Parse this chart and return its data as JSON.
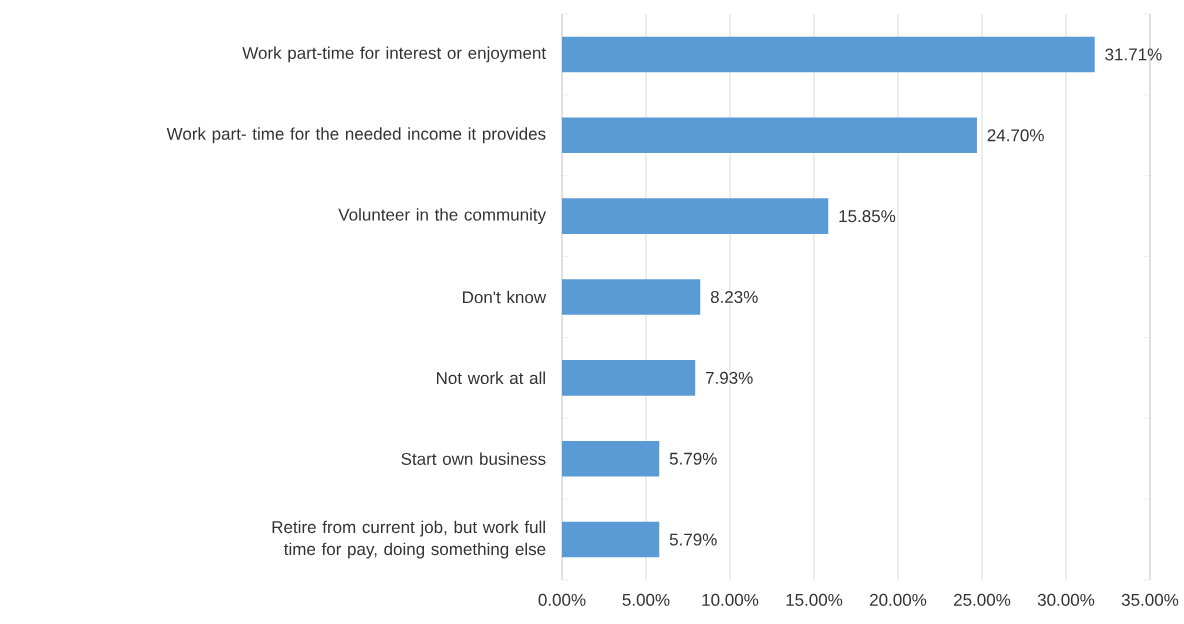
{
  "chart_data": {
    "type": "bar",
    "orientation": "horizontal",
    "categories": [
      "Work part-time for interest or enjoyment",
      "Work part- time for the needed income it provides",
      "Volunteer in the community",
      "Don't know",
      "Not work at all",
      "Start own business",
      "Retire from current job, but work full time for pay, doing something else"
    ],
    "values": [
      31.71,
      24.7,
      15.85,
      8.23,
      7.93,
      5.79,
      5.79
    ],
    "value_labels": [
      "31.71%",
      "24.70%",
      "15.85%",
      "8.23%",
      "7.93%",
      "5.79%",
      "5.79%"
    ],
    "color": "#5b9bd5",
    "xlim": [
      0,
      35
    ],
    "xticks": [
      {
        "value": 0,
        "label": "0.00%"
      },
      {
        "value": 5,
        "label": "5.00%"
      },
      {
        "value": 10,
        "label": "10.00%"
      },
      {
        "value": 15,
        "label": "15.00%"
      },
      {
        "value": 20,
        "label": "20.00%"
      },
      {
        "value": 25,
        "label": "25.00%"
      },
      {
        "value": 30,
        "label": "30.00%"
      },
      {
        "value": 35,
        "label": "35.00%"
      }
    ],
    "grid": "x"
  }
}
